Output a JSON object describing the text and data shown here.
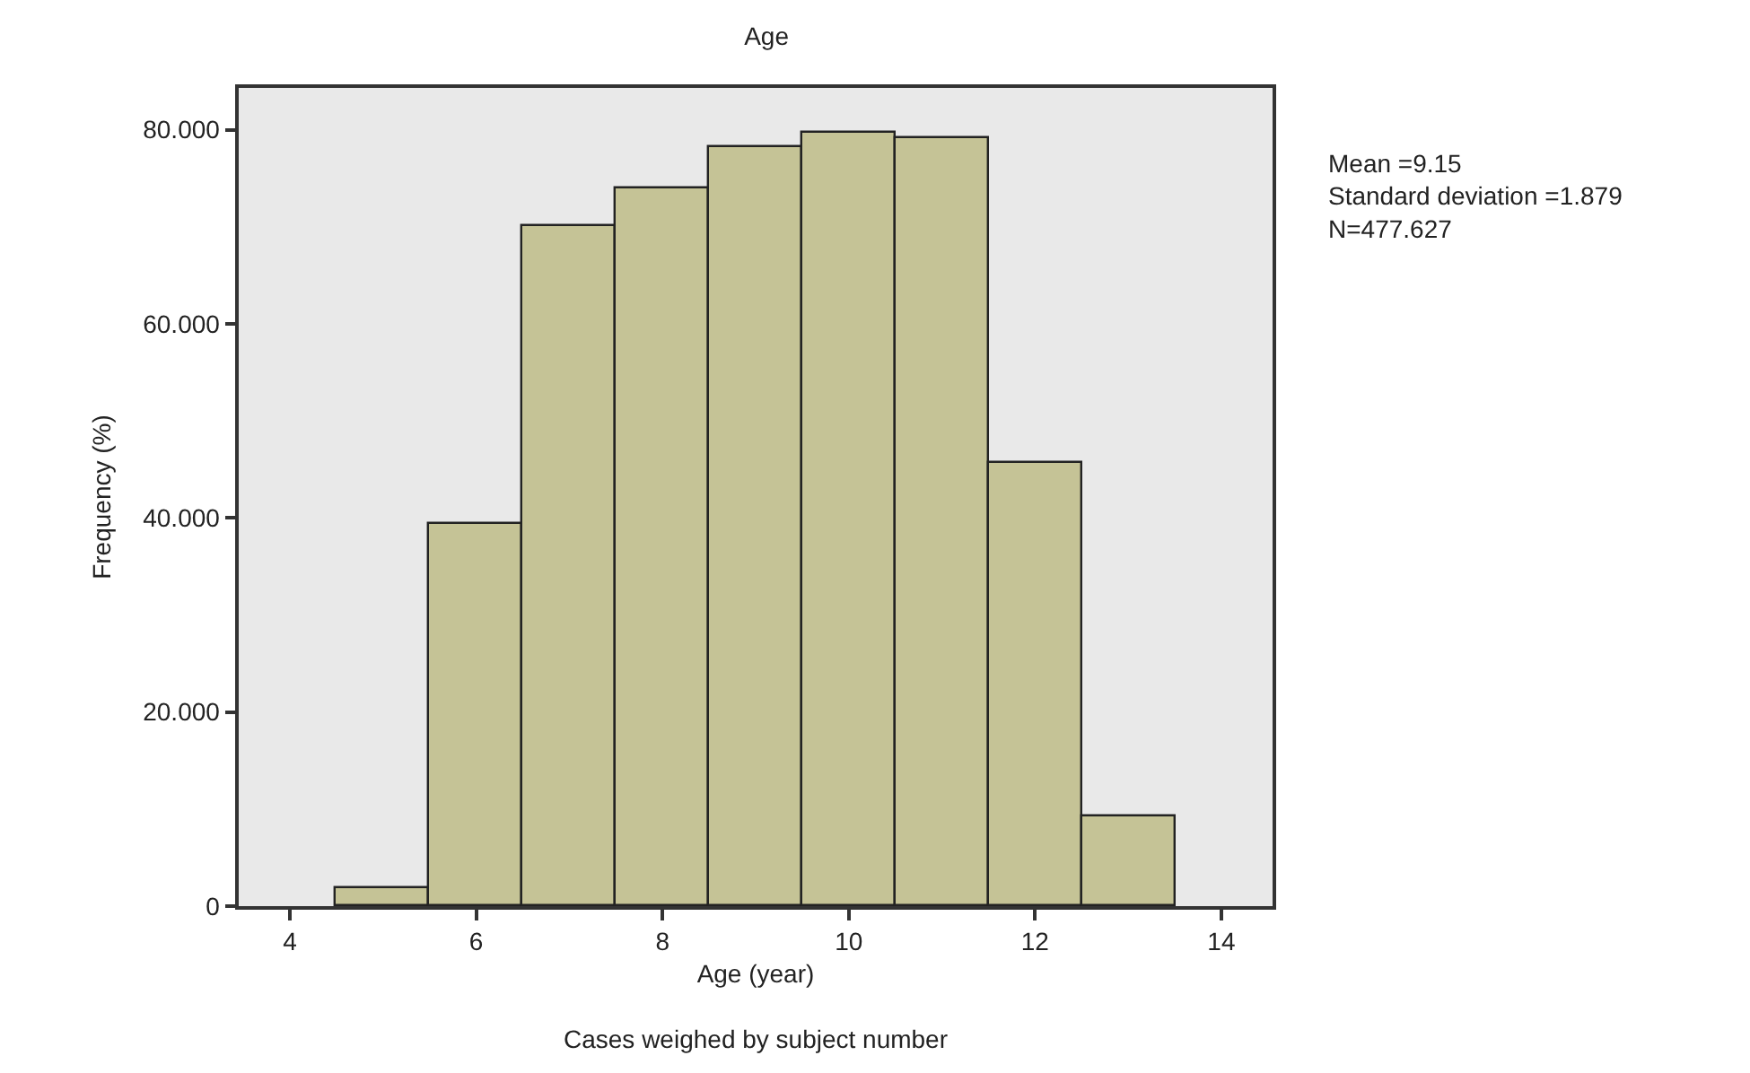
{
  "chart_data": {
    "type": "histogram",
    "title": "Age",
    "xlabel": "Age (year)",
    "ylabel": "Frequency (%)",
    "bins": [
      4.5,
      5.5,
      6.5,
      7.5,
      8.5,
      9.5,
      10.5,
      11.5,
      12.5,
      13.5
    ],
    "values": [
      1.9,
      39.4,
      70.0,
      74.0,
      78.2,
      79.7,
      79.2,
      45.6,
      9.2
    ],
    "color": "#c5c396",
    "xlim": [
      3.45,
      14.55
    ],
    "xticks": [
      4,
      6,
      8,
      10,
      12,
      14
    ],
    "ylim": [
      0,
      84.3
    ],
    "yticks": [
      0,
      {
        "value": 20,
        "label": "20.000"
      },
      {
        "value": 40,
        "label": "40.000"
      },
      {
        "value": 60,
        "label": "60.000"
      },
      {
        "value": 80,
        "label": "80.000"
      }
    ],
    "grid": false,
    "annotations": [
      "Mean =9.15\nStandard deviation =1.879\nN=477.627",
      "Cases weighed by subject number"
    ]
  }
}
